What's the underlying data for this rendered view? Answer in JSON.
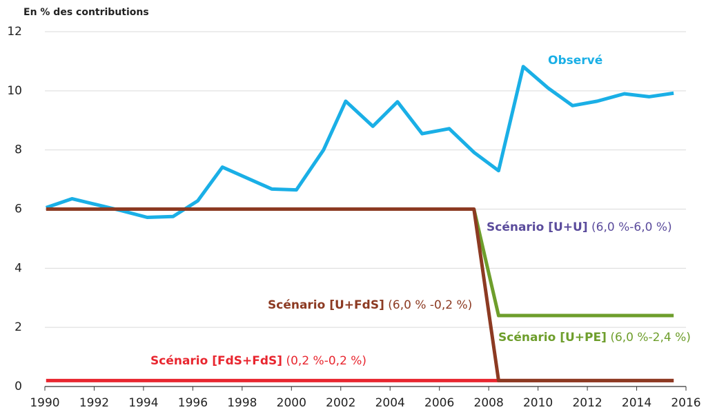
{
  "chart_data": {
    "type": "line",
    "ylabel": "En % des contributions",
    "xlim": [
      1990,
      2016
    ],
    "xticks": [
      1990,
      1992,
      1994,
      1996,
      1998,
      2000,
      2002,
      2004,
      2006,
      2008,
      2010,
      2012,
      2014,
      2016
    ],
    "ylim": [
      0,
      12
    ],
    "yticks": [
      0,
      2,
      4,
      6,
      8,
      10,
      12
    ],
    "grid": true,
    "series": [
      {
        "name": "Observé",
        "color": "#1aafe6",
        "x": [
          1990.05,
          1991.1,
          1992.1,
          1993.1,
          1994.15,
          1995.2,
          1996.2,
          1997.2,
          1999.2,
          2000.2,
          2001.3,
          2002.2,
          2003.3,
          2004.3,
          2005.3,
          2006.4,
          2007.4,
          2008.4,
          2009.4,
          2010.4,
          2011.4,
          2012.4,
          2013.5,
          2014.5,
          2015.5
        ],
        "values": [
          6.05,
          6.35,
          6.15,
          5.95,
          5.72,
          5.75,
          6.28,
          7.42,
          6.68,
          6.65,
          8.0,
          9.65,
          8.8,
          9.63,
          8.55,
          8.72,
          7.92,
          7.3,
          10.82,
          10.1,
          9.5,
          9.65,
          9.9,
          9.8,
          9.92
        ]
      },
      {
        "name": "Scénario [U+PE]",
        "color": "#6e9e2c",
        "x": [
          2007.4,
          2008.4,
          2015.5
        ],
        "values": [
          6.0,
          2.4,
          2.4
        ]
      },
      {
        "name": "Scénario [FdS+FdS]",
        "color": "#e8262f",
        "x": [
          1990.05,
          2015.5
        ],
        "values": [
          0.2,
          0.2
        ]
      },
      {
        "name": "Scénario [U+FdS]",
        "color": "#8c3a22",
        "x": [
          1990.05,
          2007.4,
          2008.4,
          2015.5
        ],
        "values": [
          6.0,
          6.0,
          0.2,
          0.2
        ]
      }
    ],
    "annotations": [
      {
        "bold": "Observé",
        "normal": "",
        "color": "#1aafe6"
      },
      {
        "bold": "Scénario [U+U]",
        "normal": "(6,0 %-6,0 %)",
        "color": "#5b4c9c"
      },
      {
        "bold": "Scénario [U+FdS]",
        "normal": "(6,0 % -0,2 %)",
        "color": "#8c3a22"
      },
      {
        "bold": "Scénario [U+PE]",
        "normal": "(6,0 %-2,4 %)",
        "color": "#6e9e2c"
      },
      {
        "bold": "Scénario [FdS+FdS]",
        "normal": "(0,2 %-0,2 %)",
        "color": "#e8262f"
      }
    ]
  }
}
